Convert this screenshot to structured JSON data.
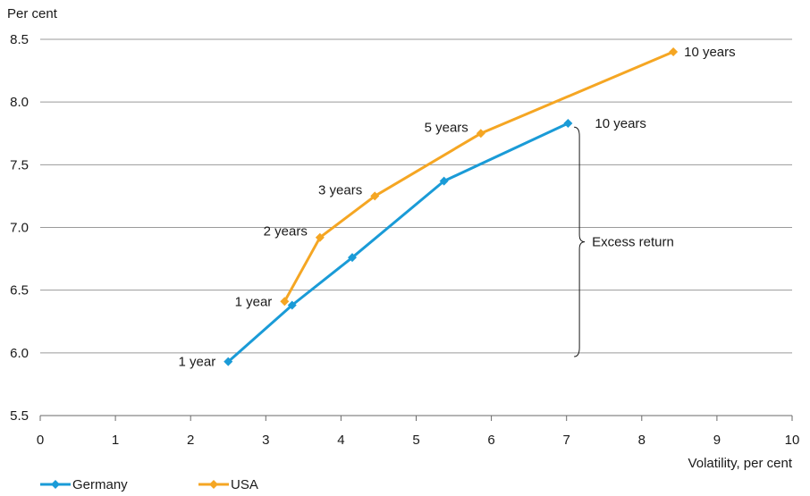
{
  "chart_data": {
    "type": "line",
    "ylabel": "Per cent",
    "xlabel": "Volatility, per cent",
    "xlim": [
      0,
      10
    ],
    "ylim": [
      5.5,
      8.5
    ],
    "xticks": [
      "0",
      "1",
      "2",
      "3",
      "4",
      "5",
      "6",
      "7",
      "8",
      "9",
      "10"
    ],
    "yticks": [
      "5.5",
      "6.0",
      "6.5",
      "7.0",
      "7.5",
      "8.0",
      "8.5"
    ],
    "grid": "horizontal",
    "legend_position": "bottom-left",
    "series": [
      {
        "name": "Germany",
        "color": "#1a9bd7",
        "points": [
          {
            "x": 2.5,
            "y": 5.93,
            "label": "1 year"
          },
          {
            "x": 3.35,
            "y": 6.38,
            "label": ""
          },
          {
            "x": 4.15,
            "y": 6.76,
            "label": ""
          },
          {
            "x": 5.37,
            "y": 7.37,
            "label": ""
          },
          {
            "x": 7.02,
            "y": 7.83,
            "label": "10 years"
          }
        ]
      },
      {
        "name": "USA",
        "color": "#f5a623",
        "points": [
          {
            "x": 3.25,
            "y": 6.41,
            "label": "1 year"
          },
          {
            "x": 3.72,
            "y": 6.92,
            "label": "2 years"
          },
          {
            "x": 4.45,
            "y": 7.25,
            "label": "3 years"
          },
          {
            "x": 5.86,
            "y": 7.75,
            "label": "5 years"
          },
          {
            "x": 8.42,
            "y": 8.4,
            "label": "10 years"
          }
        ]
      }
    ],
    "annotation": {
      "text": "Excess return",
      "x": 7.1,
      "y_top": 7.8,
      "y_bottom": 5.97
    }
  }
}
